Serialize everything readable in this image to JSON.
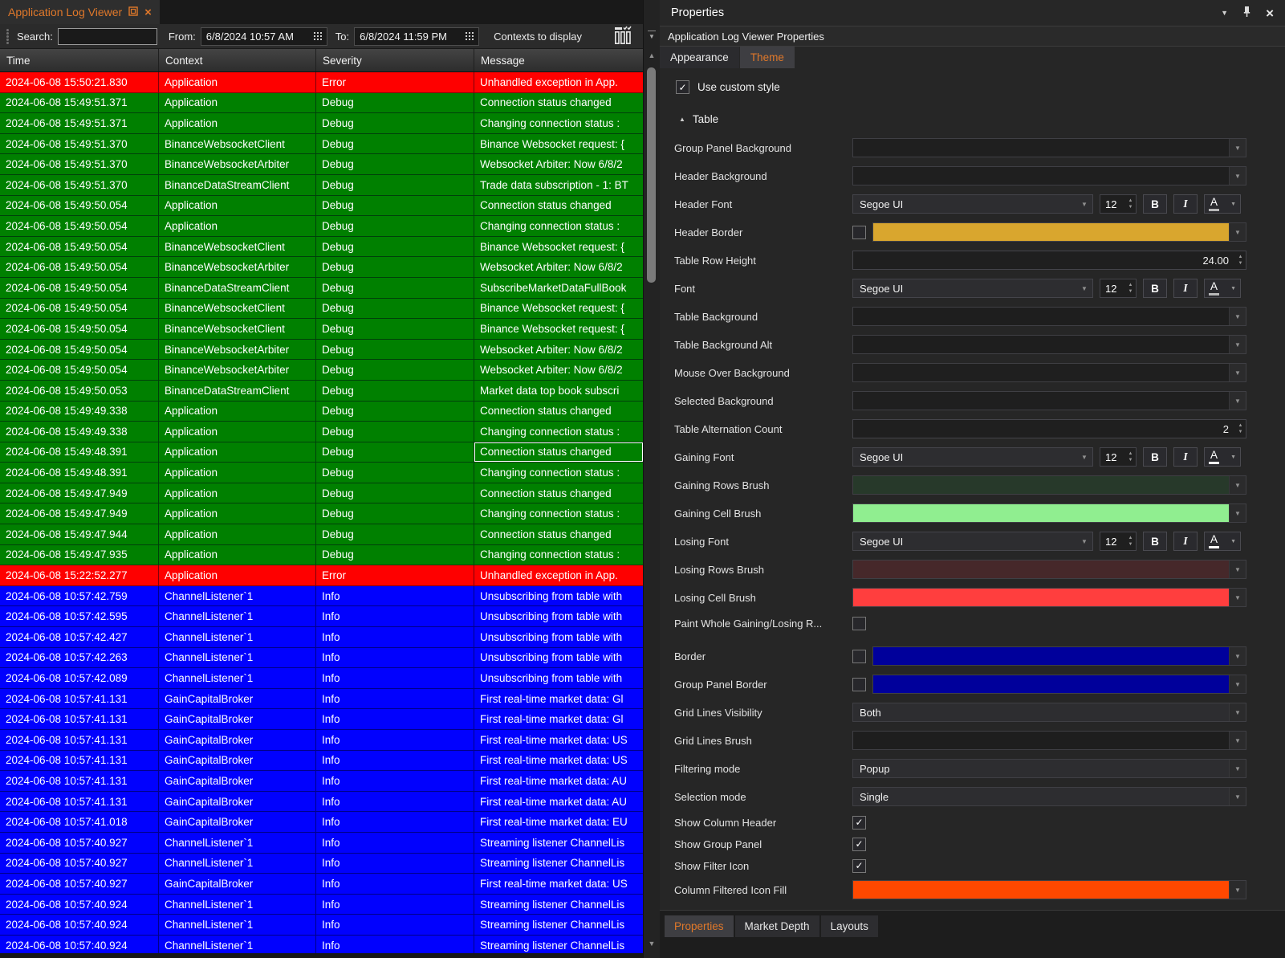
{
  "icons": {
    "close": "×",
    "dropdown": "▼",
    "up_arrow": "▲",
    "down_arrow": "▼",
    "check": "✓",
    "collapse_arrow": "▲"
  },
  "colors": {
    "accent_orange": "#e0782a",
    "error_row": "#fe0000",
    "debug_row": "#008000",
    "info_row": "#0101fe",
    "header_border_swatch": "#d9a62e",
    "border_swatch": "#00009b",
    "gaining_rows_swatch": "#27392a",
    "gaining_cell_swatch": "#90ee90",
    "losing_rows_swatch": "#46282a",
    "losing_cell_swatch": "#ff3e3e",
    "filtered_icon_fill_swatch": "#ff4800"
  },
  "window": {
    "tab_title": "Application Log Viewer"
  },
  "toolbar": {
    "search_label": "Search:",
    "search_value": "",
    "from_label": "From:",
    "from_value": "6/8/2024 10:57 AM",
    "to_label": "To:",
    "to_value": "6/8/2024 11:59 PM",
    "contexts_label": "Contexts to display"
  },
  "log_table": {
    "columns": [
      "Time",
      "Context",
      "Severity",
      "Message"
    ],
    "row_colors": {
      "Error": "#fe0000",
      "Debug": "#008000",
      "Info": "#0101fe"
    },
    "selected_row_index": 18,
    "rows": [
      [
        "2024-06-08 15:50:21.830",
        "Application",
        "Error",
        "Unhandled exception in App."
      ],
      [
        "2024-06-08 15:49:51.371",
        "Application",
        "Debug",
        "Connection status changed"
      ],
      [
        "2024-06-08 15:49:51.371",
        "Application",
        "Debug",
        "Changing connection status :"
      ],
      [
        "2024-06-08 15:49:51.370",
        "BinanceWebsocketClient",
        "Debug",
        "Binance Websocket request: {"
      ],
      [
        "2024-06-08 15:49:51.370",
        "BinanceWebsocketArbiter",
        "Debug",
        "Websocket Arbiter: Now 6/8/2"
      ],
      [
        "2024-06-08 15:49:51.370",
        "BinanceDataStreamClient",
        "Debug",
        "Trade data subscription - 1: BT"
      ],
      [
        "2024-06-08 15:49:50.054",
        "Application",
        "Debug",
        "Connection status changed"
      ],
      [
        "2024-06-08 15:49:50.054",
        "Application",
        "Debug",
        "Changing connection status :"
      ],
      [
        "2024-06-08 15:49:50.054",
        "BinanceWebsocketClient",
        "Debug",
        "Binance Websocket request: {"
      ],
      [
        "2024-06-08 15:49:50.054",
        "BinanceWebsocketArbiter",
        "Debug",
        "Websocket Arbiter: Now 6/8/2"
      ],
      [
        "2024-06-08 15:49:50.054",
        "BinanceDataStreamClient",
        "Debug",
        "SubscribeMarketDataFullBook"
      ],
      [
        "2024-06-08 15:49:50.054",
        "BinanceWebsocketClient",
        "Debug",
        "Binance Websocket request: {"
      ],
      [
        "2024-06-08 15:49:50.054",
        "BinanceWebsocketClient",
        "Debug",
        "Binance Websocket request: {"
      ],
      [
        "2024-06-08 15:49:50.054",
        "BinanceWebsocketArbiter",
        "Debug",
        "Websocket Arbiter: Now 6/8/2"
      ],
      [
        "2024-06-08 15:49:50.054",
        "BinanceWebsocketArbiter",
        "Debug",
        "Websocket Arbiter: Now 6/8/2"
      ],
      [
        "2024-06-08 15:49:50.053",
        "BinanceDataStreamClient",
        "Debug",
        "Market data top book subscri"
      ],
      [
        "2024-06-08 15:49:49.338",
        "Application",
        "Debug",
        "Connection status changed"
      ],
      [
        "2024-06-08 15:49:49.338",
        "Application",
        "Debug",
        "Changing connection status :"
      ],
      [
        "2024-06-08 15:49:48.391",
        "Application",
        "Debug",
        "Connection status changed"
      ],
      [
        "2024-06-08 15:49:48.391",
        "Application",
        "Debug",
        "Changing connection status :"
      ],
      [
        "2024-06-08 15:49:47.949",
        "Application",
        "Debug",
        "Connection status changed"
      ],
      [
        "2024-06-08 15:49:47.949",
        "Application",
        "Debug",
        "Changing connection status :"
      ],
      [
        "2024-06-08 15:49:47.944",
        "Application",
        "Debug",
        "Connection status changed"
      ],
      [
        "2024-06-08 15:49:47.935",
        "Application",
        "Debug",
        "Changing connection status :"
      ],
      [
        "2024-06-08 15:22:52.277",
        "Application",
        "Error",
        "Unhandled exception in App."
      ],
      [
        "2024-06-08 10:57:42.759",
        "ChannelListener`1",
        "Info",
        "Unsubscribing from table with"
      ],
      [
        "2024-06-08 10:57:42.595",
        "ChannelListener`1",
        "Info",
        "Unsubscribing from table with"
      ],
      [
        "2024-06-08 10:57:42.427",
        "ChannelListener`1",
        "Info",
        "Unsubscribing from table with"
      ],
      [
        "2024-06-08 10:57:42.263",
        "ChannelListener`1",
        "Info",
        "Unsubscribing from table with"
      ],
      [
        "2024-06-08 10:57:42.089",
        "ChannelListener`1",
        "Info",
        "Unsubscribing from table with"
      ],
      [
        "2024-06-08 10:57:41.131",
        "GainCapitalBroker",
        "Info",
        "First real-time market data: Gl"
      ],
      [
        "2024-06-08 10:57:41.131",
        "GainCapitalBroker",
        "Info",
        "First real-time market data: Gl"
      ],
      [
        "2024-06-08 10:57:41.131",
        "GainCapitalBroker",
        "Info",
        "First real-time market data: US"
      ],
      [
        "2024-06-08 10:57:41.131",
        "GainCapitalBroker",
        "Info",
        "First real-time market data: US"
      ],
      [
        "2024-06-08 10:57:41.131",
        "GainCapitalBroker",
        "Info",
        "First real-time market data: AU"
      ],
      [
        "2024-06-08 10:57:41.131",
        "GainCapitalBroker",
        "Info",
        "First real-time market data: AU"
      ],
      [
        "2024-06-08 10:57:41.018",
        "GainCapitalBroker",
        "Info",
        "First real-time market data: EU"
      ],
      [
        "2024-06-08 10:57:40.927",
        "ChannelListener`1",
        "Info",
        "Streaming listener ChannelLis"
      ],
      [
        "2024-06-08 10:57:40.927",
        "ChannelListener`1",
        "Info",
        "Streaming listener ChannelLis"
      ],
      [
        "2024-06-08 10:57:40.927",
        "GainCapitalBroker",
        "Info",
        "First real-time market data: US"
      ],
      [
        "2024-06-08 10:57:40.924",
        "ChannelListener`1",
        "Info",
        "Streaming listener ChannelLis"
      ],
      [
        "2024-06-08 10:57:40.924",
        "ChannelListener`1",
        "Info",
        "Streaming listener ChannelLis"
      ],
      [
        "2024-06-08 10:57:40.924",
        "ChannelListener`1",
        "Info",
        "Streaming listener ChannelLis"
      ]
    ]
  },
  "properties_panel": {
    "title": "Properties",
    "subtitle": "Application Log Viewer Properties",
    "tabs": [
      {
        "label": "Appearance",
        "active": false
      },
      {
        "label": "Theme",
        "active": true
      }
    ],
    "use_custom_style": {
      "label": "Use custom style",
      "checked": true
    },
    "group_label": "Table",
    "rows": [
      {
        "label": "Group Panel Background",
        "type": "dropdown",
        "style": "gradient-dark"
      },
      {
        "label": "Header Background",
        "type": "dropdown",
        "style": "gradient-dark"
      },
      {
        "label": "Header Font",
        "type": "font",
        "font": "Segoe UI",
        "size": "12",
        "bold": "B",
        "italic": "I",
        "color_glyph": "A",
        "underline": "#b8b8b8"
      },
      {
        "label": "Header Border",
        "type": "check-color",
        "checked": false,
        "color": "#d9a62e"
      },
      {
        "label": "Table Row Height",
        "type": "number",
        "value": "24.00"
      },
      {
        "label": "Font",
        "type": "font",
        "font": "Segoe UI",
        "size": "12",
        "bold": "B",
        "italic": "I",
        "color_glyph": "A",
        "underline": "#b8b8b8"
      },
      {
        "label": "Table Background",
        "type": "dropdown",
        "style": "flat-dark"
      },
      {
        "label": "Table Background Alt",
        "type": "dropdown",
        "style": "flat-dark"
      },
      {
        "label": "Mouse Over Background",
        "type": "dropdown",
        "style": "gradient-mid"
      },
      {
        "label": "Selected Background",
        "type": "dropdown",
        "style": "gradient-gray"
      },
      {
        "label": "Table Alternation Count",
        "type": "number",
        "value": "2"
      },
      {
        "label": "Gaining Font",
        "type": "font",
        "font": "Segoe UI",
        "size": "12",
        "bold": "B",
        "italic": "I",
        "color_glyph": "A",
        "underline": "#ffffff"
      },
      {
        "label": "Gaining Rows Brush",
        "type": "dropdown",
        "style": "color",
        "color": "#27392a"
      },
      {
        "label": "Gaining Cell Brush",
        "type": "dropdown",
        "style": "color",
        "color": "#90ee90"
      },
      {
        "label": "Losing Font",
        "type": "font",
        "font": "Segoe UI",
        "size": "12",
        "bold": "B",
        "italic": "I",
        "color_glyph": "A",
        "underline": "#ffffff"
      },
      {
        "label": "Losing Rows Brush",
        "type": "dropdown",
        "style": "color",
        "color": "#46282a"
      },
      {
        "label": "Losing Cell Brush",
        "type": "dropdown",
        "style": "color",
        "color": "#ff3e3e"
      },
      {
        "label": "Paint Whole Gaining/Losing R...",
        "type": "checkbox",
        "checked": false
      },
      {
        "label": "Border",
        "type": "check-color",
        "checked": false,
        "color": "#00009b"
      },
      {
        "label": "Group Panel Border",
        "type": "check-color",
        "checked": false,
        "color": "#00009b"
      },
      {
        "label": "Grid Lines Visibility",
        "type": "select",
        "value": "Both"
      },
      {
        "label": "Grid Lines Brush",
        "type": "dropdown",
        "style": "flat-dark"
      },
      {
        "label": "Filtering mode",
        "type": "select",
        "value": "Popup"
      },
      {
        "label": "Selection mode",
        "type": "select",
        "value": "Single"
      },
      {
        "label": "Show Column Header",
        "type": "checkbox",
        "checked": true
      },
      {
        "label": "Show Group Panel",
        "type": "checkbox",
        "checked": true
      },
      {
        "label": "Show Filter Icon",
        "type": "checkbox",
        "checked": true
      },
      {
        "label": "Column Filtered Icon Fill",
        "type": "dropdown",
        "style": "color",
        "color": "#ff4800"
      }
    ],
    "bottom_tabs": [
      {
        "label": "Properties",
        "active": true
      },
      {
        "label": "Market Depth",
        "active": false
      },
      {
        "label": "Layouts",
        "active": false
      }
    ]
  }
}
